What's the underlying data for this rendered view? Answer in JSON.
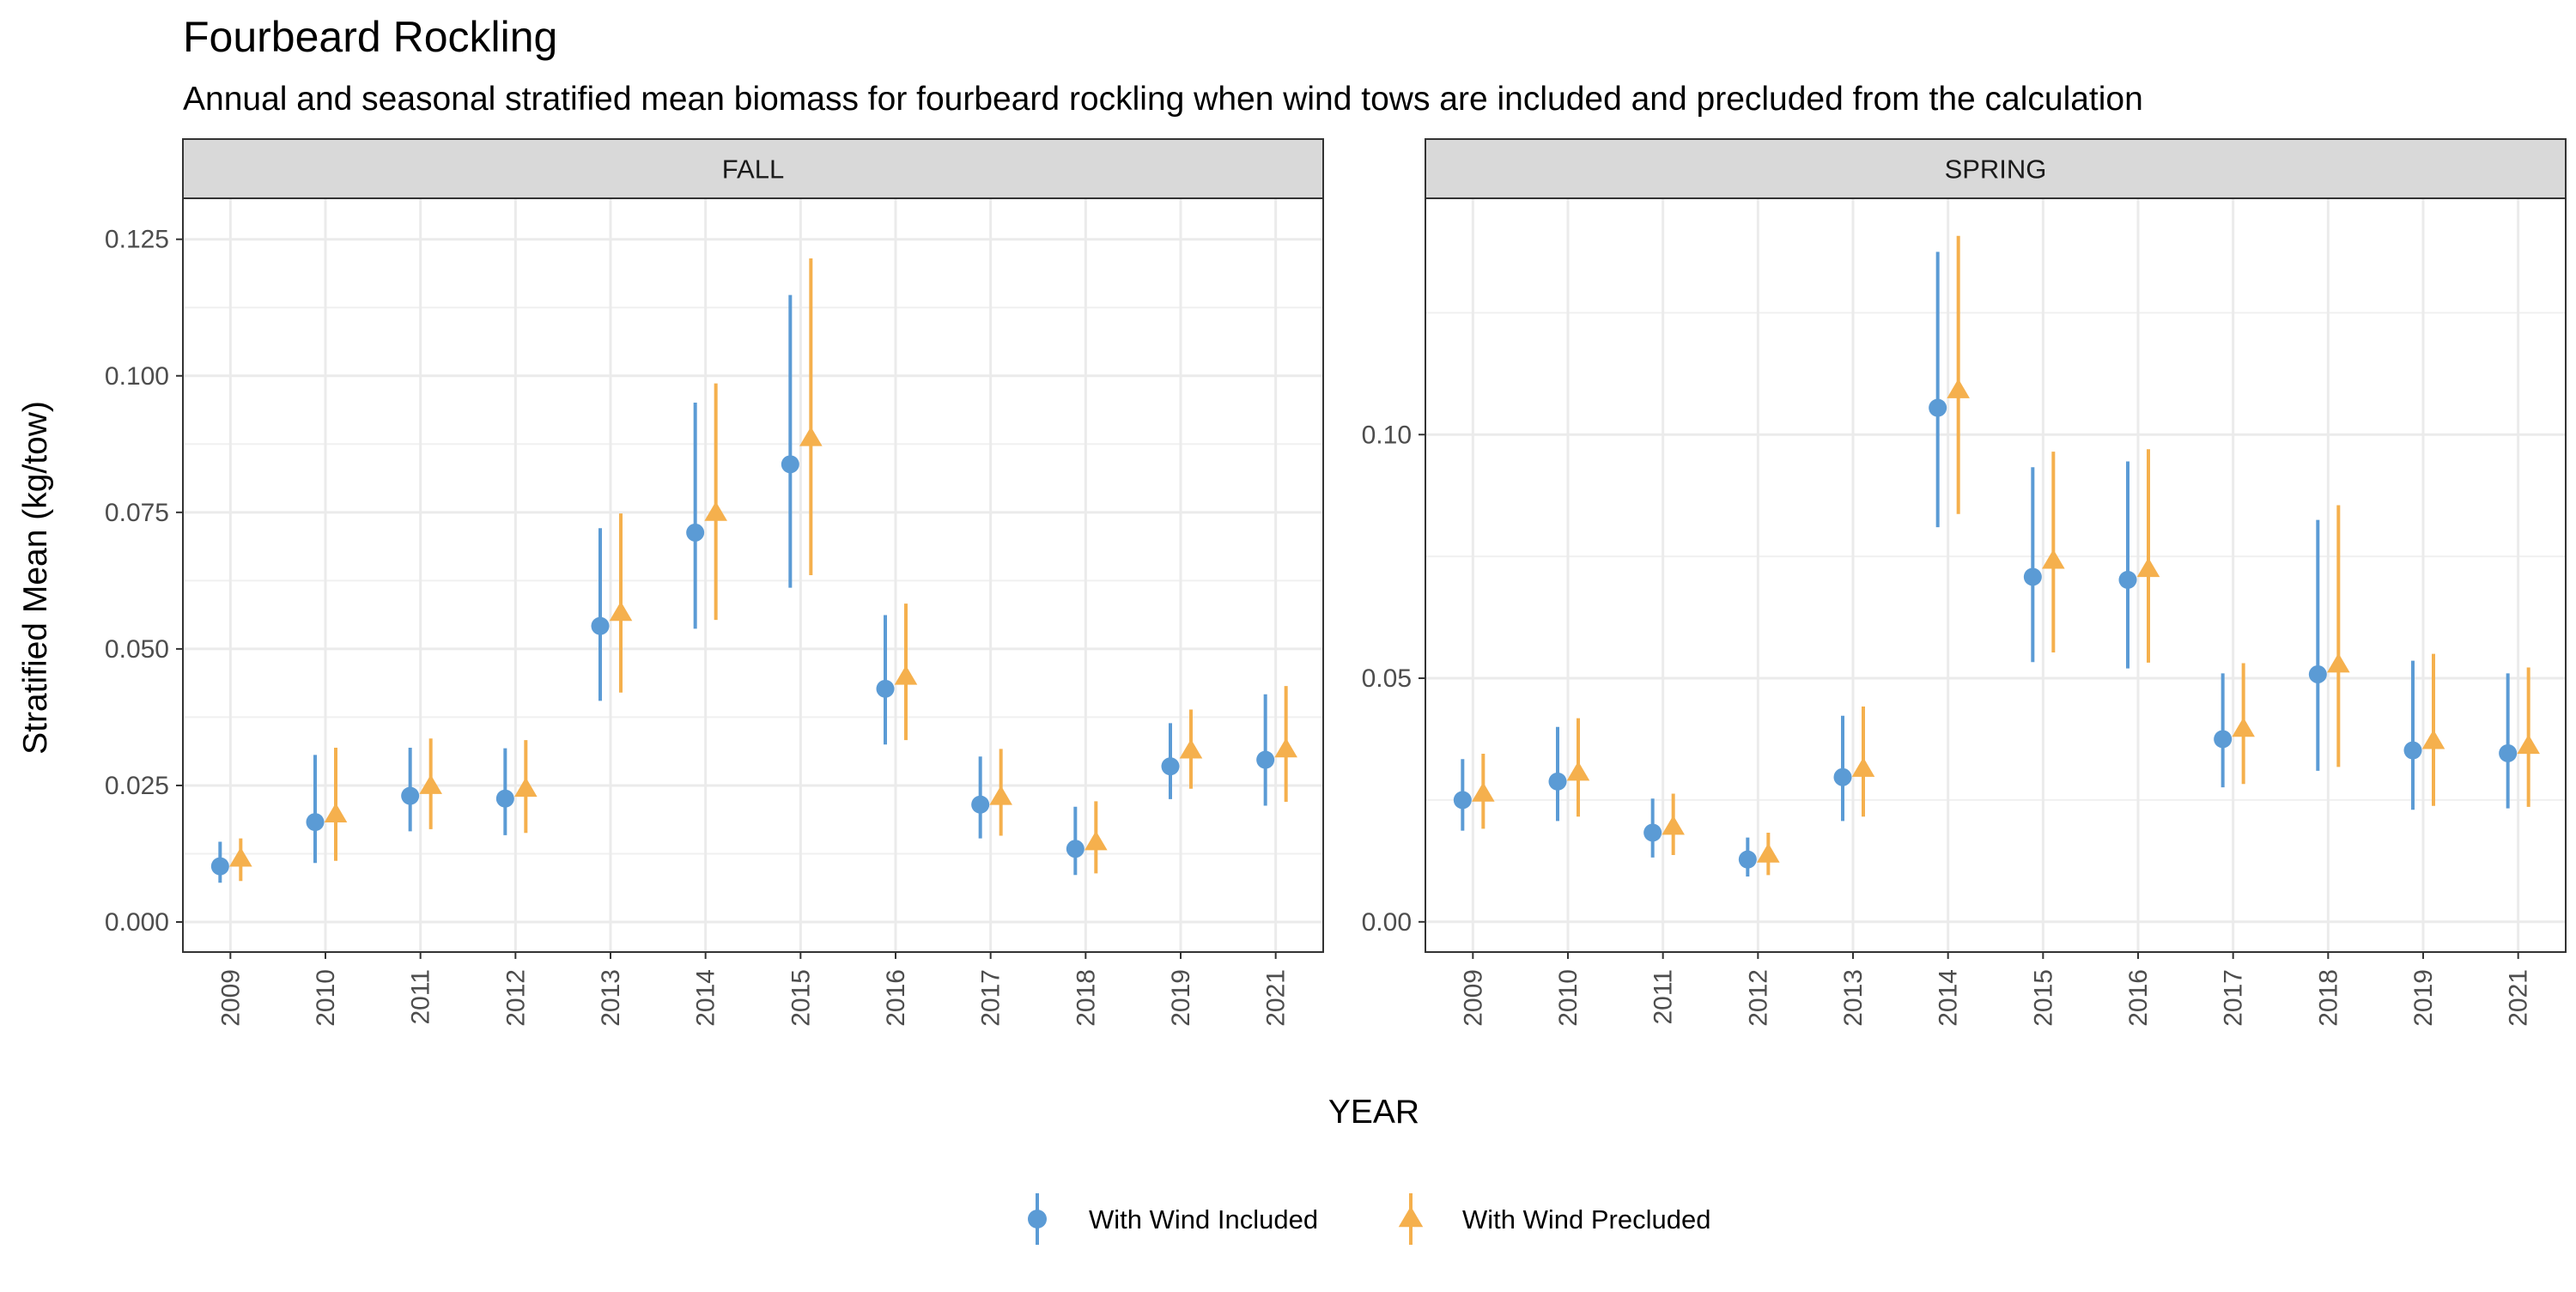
{
  "title": "Fourbeard Rockling",
  "subtitle": "Annual and seasonal stratified mean biomass for fourbeard rockling when wind tows are included and precluded from the calculation",
  "chart_data": {
    "type": "scatter",
    "xlabel": "YEAR",
    "ylabel": "Stratified Mean (kg/tow)",
    "grid": true,
    "legend_position": "bottom",
    "colors": {
      "With Wind Included": "#5b9bd5",
      "With Wind Precluded": "#f5b04d"
    },
    "categories": [
      "2009",
      "2010",
      "2011",
      "2012",
      "2013",
      "2014",
      "2015",
      "2016",
      "2017",
      "2018",
      "2019",
      "2021"
    ],
    "legend": [
      {
        "name": "With Wind Included",
        "shape": "circle",
        "color": "#5b9bd5"
      },
      {
        "name": "With Wind Precluded",
        "shape": "triangle",
        "color": "#f5b04d"
      }
    ],
    "panels": [
      {
        "label": "FALL",
        "ylim": [
          -0.0055,
          0.1325
        ],
        "yticks": [
          0.0,
          0.025,
          0.05,
          0.075,
          0.1,
          0.125
        ],
        "ytick_labels": [
          "0.000",
          "0.025",
          "0.050",
          "0.075",
          "0.100",
          "0.125"
        ],
        "series": [
          {
            "name": "With Wind Included",
            "values": [
              0.0102,
              0.0183,
              0.0231,
              0.0226,
              0.0542,
              0.0713,
              0.0838,
              0.0427,
              0.0215,
              0.0134,
              0.0285,
              0.0297
            ],
            "lower": [
              0.0072,
              0.0108,
              0.0166,
              0.0159,
              0.0405,
              0.0537,
              0.0612,
              0.0325,
              0.0153,
              0.0086,
              0.0225,
              0.0213
            ],
            "upper": [
              0.0147,
              0.0306,
              0.0319,
              0.0318,
              0.0721,
              0.0951,
              0.1148,
              0.0562,
              0.0303,
              0.0211,
              0.0364,
              0.0417
            ]
          },
          {
            "name": "With Wind Precluded",
            "values": [
              0.0115,
              0.0196,
              0.0248,
              0.0243,
              0.0565,
              0.0748,
              0.0885,
              0.0448,
              0.0228,
              0.0145,
              0.0313,
              0.0315
            ],
            "lower": [
              0.0075,
              0.0112,
              0.017,
              0.0163,
              0.042,
              0.0553,
              0.0635,
              0.0333,
              0.0158,
              0.0089,
              0.0244,
              0.022
            ],
            "upper": [
              0.0153,
              0.0319,
              0.0336,
              0.0333,
              0.0748,
              0.0986,
              0.1215,
              0.0583,
              0.0317,
              0.0221,
              0.0389,
              0.0432
            ]
          }
        ]
      },
      {
        "label": "SPRING",
        "ylim": [
          -0.0062,
          0.1485
        ],
        "yticks": [
          0.0,
          0.05,
          0.1
        ],
        "ytick_labels": [
          "0.00",
          "0.05",
          "0.10"
        ],
        "series": [
          {
            "name": "With Wind Included",
            "values": [
              0.025,
              0.0288,
              0.0183,
              0.0128,
              0.0297,
              0.1055,
              0.0708,
              0.0702,
              0.0375,
              0.0508,
              0.0352,
              0.0346
            ],
            "lower": [
              0.0187,
              0.0207,
              0.0132,
              0.0093,
              0.0207,
              0.081,
              0.0533,
              0.052,
              0.0276,
              0.031,
              0.023,
              0.0233
            ],
            "upper": [
              0.0334,
              0.04,
              0.0253,
              0.0173,
              0.0423,
              0.1375,
              0.0933,
              0.0945,
              0.051,
              0.0825,
              0.0536,
              0.051
            ]
          },
          {
            "name": "With Wind Precluded",
            "values": [
              0.0262,
              0.0305,
              0.0194,
              0.0137,
              0.0313,
              0.109,
              0.074,
              0.0723,
              0.0395,
              0.0527,
              0.037,
              0.036
            ],
            "lower": [
              0.0191,
              0.0216,
              0.0137,
              0.0096,
              0.0216,
              0.0837,
              0.0553,
              0.0532,
              0.0283,
              0.0318,
              0.0238,
              0.0236
            ],
            "upper": [
              0.0345,
              0.0418,
              0.0263,
              0.0183,
              0.0442,
              0.1408,
              0.0965,
              0.097,
              0.0531,
              0.0855,
              0.055,
              0.0522
            ]
          }
        ]
      }
    ]
  }
}
